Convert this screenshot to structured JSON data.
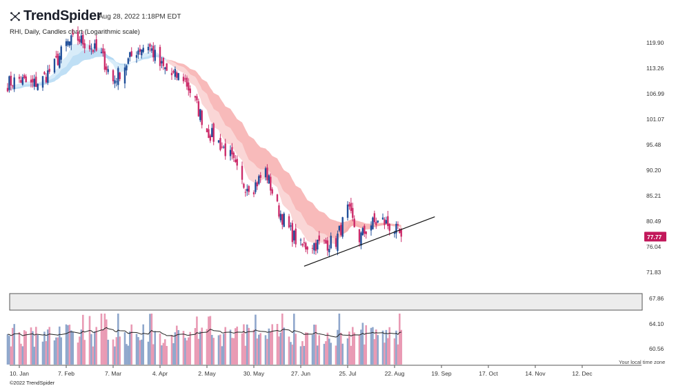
{
  "header": {
    "brand": "TrendSpider",
    "timestamp": "Aug 28, 2022 1:18PM EDT",
    "subtitle": "RHI, Daily, Candles chart (Logarithmic scale)"
  },
  "footer": {
    "copyright": "©2022 TrendSpider",
    "timezone_label": "Your local time zone"
  },
  "colors": {
    "up": "#1f4e99",
    "down": "#cc2c6a",
    "ribbon_bull": "#a9d4f2",
    "ribbon_bear": "#f5a3a3",
    "vol_up": "#8fa7cc",
    "vol_down": "#e99ab4",
    "price_tag": "#c2185b"
  },
  "chart_data": [
    {
      "type": "candlestick",
      "title": "RHI, Daily, Candles chart (Logarithmic scale)",
      "y_scale": "log",
      "ylim": [
        70.5,
        126
      ],
      "y_ticks": [
        "119.90",
        "113.26",
        "106.99",
        "101.07",
        "95.48",
        "90.20",
        "85.21",
        "80.49",
        "76.04",
        "71.83"
      ],
      "x_ticks": [
        "10. Jan",
        "7. Feb",
        "7. Mar",
        "4. Apr",
        "2. May",
        "30. May",
        "27. Jun",
        "25. Jul",
        "22. Aug",
        "19. Sep",
        "17. Oct",
        "14. Nov",
        "12. Dec"
      ],
      "last_price": "77.77",
      "close_series": [
        {
          "date": "2022-01-03",
          "close": 109.5
        },
        {
          "date": "2022-01-10",
          "close": 110.5
        },
        {
          "date": "2022-01-17",
          "close": 109.0
        },
        {
          "date": "2022-01-24",
          "close": 110.5
        },
        {
          "date": "2022-01-31",
          "close": 114.0
        },
        {
          "date": "2022-02-07",
          "close": 119.5
        },
        {
          "date": "2022-02-14",
          "close": 121.0
        },
        {
          "date": "2022-02-21",
          "close": 119.0
        },
        {
          "date": "2022-02-28",
          "close": 116.5
        },
        {
          "date": "2022-03-07",
          "close": 110.0
        },
        {
          "date": "2022-03-14",
          "close": 114.0
        },
        {
          "date": "2022-03-21",
          "close": 118.0
        },
        {
          "date": "2022-03-28",
          "close": 119.5
        },
        {
          "date": "2022-04-04",
          "close": 114.0
        },
        {
          "date": "2022-04-11",
          "close": 111.5
        },
        {
          "date": "2022-04-18",
          "close": 111.0
        },
        {
          "date": "2022-04-25",
          "close": 105.0
        },
        {
          "date": "2022-05-02",
          "close": 98.5
        },
        {
          "date": "2022-05-09",
          "close": 96.0
        },
        {
          "date": "2022-05-16",
          "close": 93.0
        },
        {
          "date": "2022-05-23",
          "close": 87.5
        },
        {
          "date": "2022-05-30",
          "close": 87.0
        },
        {
          "date": "2022-06-06",
          "close": 90.0
        },
        {
          "date": "2022-06-13",
          "close": 83.0
        },
        {
          "date": "2022-06-20",
          "close": 79.0
        },
        {
          "date": "2022-06-27",
          "close": 76.0
        },
        {
          "date": "2022-07-04",
          "close": 76.5
        },
        {
          "date": "2022-07-11",
          "close": 76.5
        },
        {
          "date": "2022-07-18",
          "close": 77.0
        },
        {
          "date": "2022-07-25",
          "close": 82.5
        },
        {
          "date": "2022-08-01",
          "close": 77.5
        },
        {
          "date": "2022-08-08",
          "close": 80.0
        },
        {
          "date": "2022-08-15",
          "close": 80.5
        },
        {
          "date": "2022-08-22",
          "close": 79.0
        },
        {
          "date": "2022-08-26",
          "close": 77.77
        }
      ],
      "trendline": {
        "from": {
          "date": "2022-06-29",
          "price": 72.8
        },
        "to": {
          "date": "2022-09-15",
          "price": 81.3
        }
      }
    },
    {
      "type": "bar",
      "title": "Volume",
      "y_ticks": [
        "67.86",
        "64.10",
        "60.56"
      ]
    }
  ]
}
